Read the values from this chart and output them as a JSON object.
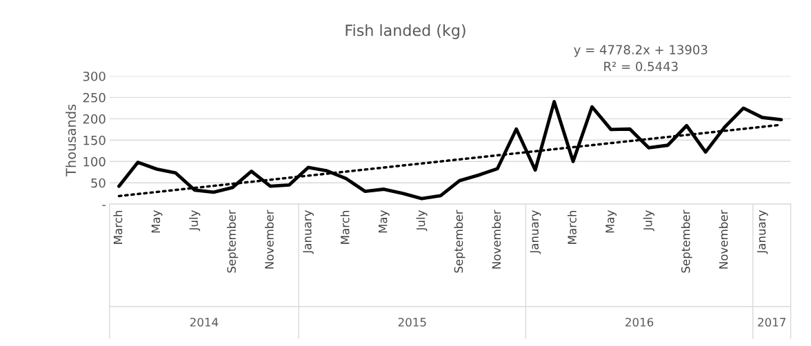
{
  "chart_data": {
    "type": "line",
    "title": "Fish landed (kg)",
    "ylabel": "Thousands",
    "categories": [
      "March",
      null,
      "May",
      null,
      "July",
      null,
      "September",
      null,
      "November",
      null,
      "January",
      null,
      "March",
      null,
      "May",
      null,
      "July",
      null,
      "September",
      null,
      "November",
      null,
      "January",
      null,
      "March",
      null,
      "May",
      null,
      "July",
      null,
      "September",
      null,
      "November",
      null,
      "January",
      null
    ],
    "series": [
      {
        "color": "#000000",
        "values": [
          42,
          98,
          82,
          73,
          33,
          28,
          39,
          77,
          42,
          45,
          86,
          78,
          60,
          30,
          35,
          25,
          13,
          20,
          55,
          68,
          83,
          176,
          80,
          240,
          100,
          228,
          175,
          176,
          132,
          138,
          184,
          122,
          180,
          225,
          203,
          198
        ]
      },
      {
        "type": "line",
        "color": "#000000",
        "line_style": "dotted",
        "values": [
          19,
          null,
          null,
          null,
          null,
          null,
          null,
          null,
          null,
          null,
          null,
          null,
          null,
          null,
          null,
          null,
          null,
          null,
          null,
          null,
          null,
          null,
          null,
          null,
          null,
          null,
          null,
          null,
          null,
          null,
          null,
          null,
          null,
          null,
          null,
          186
        ]
      }
    ],
    "ylim": [
      0,
      300
    ],
    "yticks": [
      {
        "value": 0,
        "label": "-"
      },
      50,
      100,
      150,
      200,
      250,
      300
    ],
    "grid": "y",
    "legend": false,
    "annotations": [
      "y = 4778.2x + 13903\nR² = 0.5443",
      "2014",
      "2015",
      "2016",
      "2017"
    ]
  }
}
